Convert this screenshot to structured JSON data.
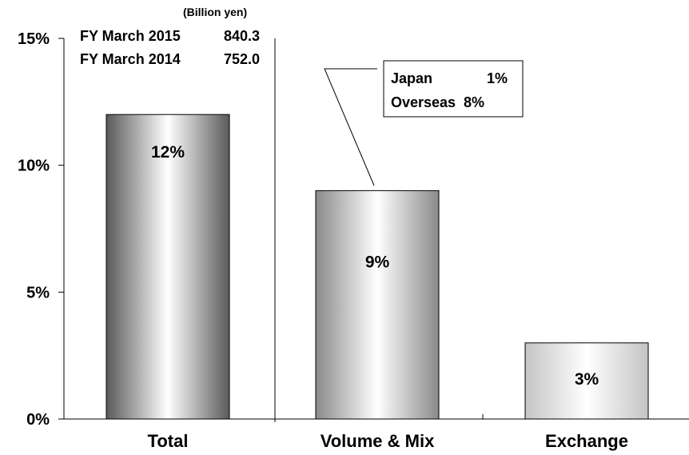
{
  "chart_data": {
    "type": "bar",
    "categories": [
      "Total",
      "Volume & Mix",
      "Exchange"
    ],
    "values": [
      12,
      9,
      3
    ],
    "value_labels": [
      "12%",
      "9%",
      "3%"
    ],
    "title": "",
    "xlabel": "",
    "ylabel": "",
    "ylim": [
      0,
      15
    ],
    "yticks": [
      0,
      5,
      10,
      15
    ],
    "ytick_labels": [
      "0%",
      "5%",
      "10%",
      "15%"
    ],
    "grid": false,
    "legend": "none",
    "unit_note": "(Billion yen)",
    "info_rows": [
      {
        "label": "FY March 2015",
        "value": "840.3"
      },
      {
        "label": "FY March 2014",
        "value": "752.0"
      }
    ],
    "callout": {
      "target_category": "Volume & Mix",
      "rows": [
        {
          "label": "Japan",
          "value": "1%"
        },
        {
          "label": "Overseas",
          "value": "8%"
        }
      ]
    }
  }
}
